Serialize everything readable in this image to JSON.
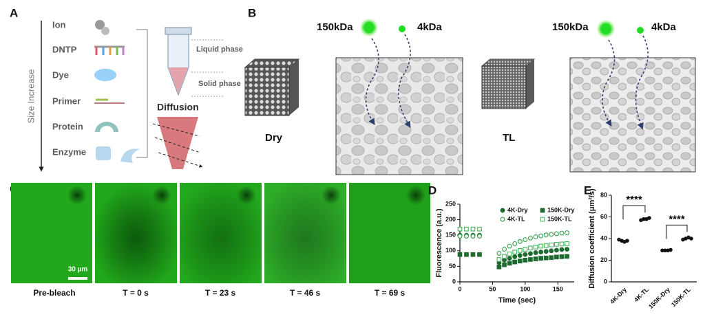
{
  "panel_a": {
    "label": "A",
    "axis_label": "Size Increase",
    "items": [
      "Ion",
      "DNTP",
      "Dye",
      "Primer",
      "Protein",
      "Enzyme"
    ],
    "liquid_phase": "Liquid phase",
    "solid_phase": "Solid phase",
    "diffusion": "Diffusion"
  },
  "panel_b": {
    "label": "B",
    "large_molecule": "150kDa",
    "small_molecule": "4kDa",
    "dry": "Dry",
    "tl": "TL"
  },
  "panel_c": {
    "label": "C",
    "scale_bar": "30 µm",
    "frames": [
      "Pre-bleach",
      "T = 0 s",
      "T = 23 s",
      "T = 46 s",
      "T = 69 s"
    ]
  },
  "chart_data": [
    {
      "type": "scatter",
      "label": "D",
      "x_label": "Time (sec)",
      "y_label": "Fluorescence (a.u.)",
      "x": [
        0,
        10,
        20,
        30,
        60,
        68,
        76,
        84,
        92,
        100,
        108,
        116,
        124,
        132,
        140,
        148,
        156,
        164
      ],
      "xlim": [
        0,
        175
      ],
      "xticks": [
        0,
        50,
        100,
        150
      ],
      "ylim": [
        0,
        250
      ],
      "yticks": [
        0,
        50,
        100,
        150,
        200,
        250
      ],
      "series": [
        {
          "name": "4K-Dry",
          "color": "#1d6b2f",
          "marker": "circle",
          "filled": true,
          "values": [
            150,
            150,
            150,
            150,
            62,
            70,
            76,
            81,
            85,
            88,
            91,
            94,
            96,
            98,
            100,
            102,
            104,
            105
          ]
        },
        {
          "name": "150K-Dry",
          "color": "#1d6b2f",
          "marker": "square",
          "filled": true,
          "values": [
            88,
            88,
            88,
            88,
            48,
            55,
            60,
            64,
            67,
            70,
            72,
            74,
            76,
            77,
            78,
            80,
            81,
            82
          ]
        },
        {
          "name": "4K-TL",
          "color": "#2f9d45",
          "marker": "circle",
          "filled": false,
          "values": [
            147,
            147,
            147,
            147,
            92,
            105,
            115,
            123,
            130,
            136,
            141,
            145,
            148,
            151,
            153,
            155,
            157,
            158
          ]
        },
        {
          "name": "150K-TL",
          "color": "#45b55a",
          "marker": "square",
          "filled": false,
          "values": [
            170,
            170,
            170,
            170,
            72,
            82,
            90,
            96,
            101,
            105,
            109,
            112,
            115,
            117,
            119,
            121,
            122,
            123
          ]
        }
      ]
    },
    {
      "type": "dot",
      "label": "E",
      "y_label": "Diffusion coefficient (μm²/s)",
      "categories": [
        "4K-Dry",
        "4K-TL",
        "150K-Dry",
        "150K-TL"
      ],
      "values": [
        [
          39,
          38,
          37,
          38
        ],
        [
          57,
          58,
          58,
          59
        ],
        [
          29,
          29,
          29,
          29.5
        ],
        [
          39,
          40,
          41,
          40
        ]
      ],
      "color": "#111111",
      "ylim": [
        0,
        80
      ],
      "yticks": [
        0,
        20,
        40,
        60,
        80
      ],
      "annotations": [
        "****",
        "****"
      ]
    }
  ]
}
